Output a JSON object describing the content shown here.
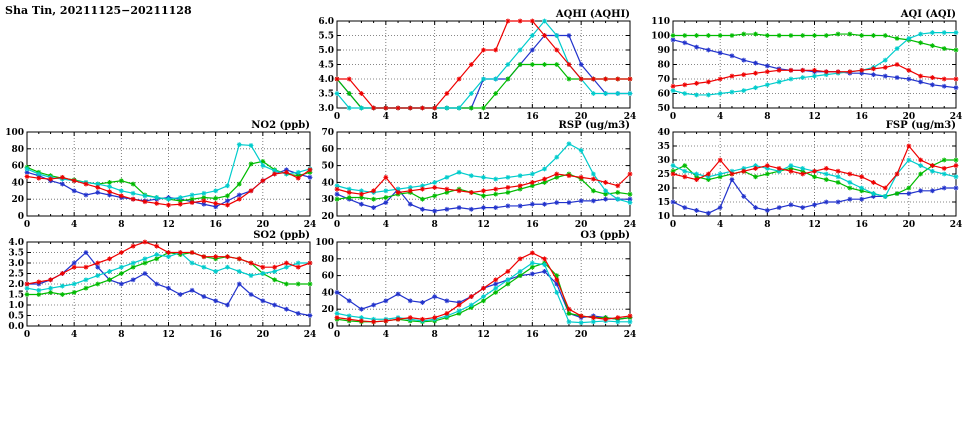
{
  "page": {
    "title": "Sha Tin, 20211125−20211128"
  },
  "chart_data": [
    {
      "id": "aqhi",
      "type": "line",
      "title": "AQHI (AQHI)",
      "xlabel": "",
      "ylabel": "",
      "xlim": [
        0,
        24
      ],
      "xticks": [
        0,
        4,
        8,
        12,
        16,
        20,
        24
      ],
      "x_step": 1,
      "ylim": [
        3.0,
        6.0
      ],
      "yticks": [
        3.0,
        3.5,
        4.0,
        4.5,
        5.0,
        5.5,
        6.0
      ],
      "ydecimals": 1,
      "grid": true,
      "legend": "none",
      "series": [
        {
          "name": "blue",
          "color": "#2233cc",
          "values": [
            4,
            3.5,
            3,
            3,
            3,
            3,
            3,
            3,
            3,
            3,
            3,
            3,
            4,
            4,
            4,
            4.5,
            5,
            5.5,
            5.5,
            5.5,
            4.5,
            4,
            3.5,
            3.5,
            3.5
          ]
        },
        {
          "name": "green",
          "color": "#00bb00",
          "values": [
            4,
            3.5,
            3,
            3,
            3,
            3,
            3,
            3,
            3,
            3,
            3,
            3,
            3,
            3.5,
            4,
            4.5,
            4.5,
            4.5,
            4.5,
            4,
            4,
            4,
            4,
            4,
            4
          ]
        },
        {
          "name": "cyan",
          "color": "#00cccc",
          "values": [
            3.5,
            3,
            3,
            3,
            3,
            3,
            3,
            3,
            3,
            3,
            3,
            3.5,
            4,
            4,
            4.5,
            5,
            5.5,
            6,
            5.5,
            4.5,
            4,
            3.5,
            3.5,
            3.5,
            3.5
          ]
        },
        {
          "name": "red",
          "color": "#ee0000",
          "values": [
            4,
            4,
            3.5,
            3,
            3,
            3,
            3,
            3,
            3,
            3.5,
            4,
            4.5,
            5,
            5,
            6,
            6,
            6,
            5.5,
            5,
            4.5,
            4,
            4,
            4,
            4,
            4
          ]
        }
      ]
    },
    {
      "id": "aqi",
      "type": "line",
      "title": "AQI (AQI)",
      "xlabel": "",
      "ylabel": "",
      "xlim": [
        0,
        24
      ],
      "xticks": [
        0,
        4,
        8,
        12,
        16,
        20,
        24
      ],
      "x_step": 1,
      "ylim": [
        50,
        110
      ],
      "yticks": [
        50,
        60,
        70,
        80,
        90,
        100,
        110
      ],
      "ydecimals": 0,
      "grid": true,
      "legend": "none",
      "series": [
        {
          "name": "blue",
          "color": "#2233cc",
          "values": [
            97,
            95,
            92,
            90,
            88,
            86,
            83,
            81,
            79,
            77,
            76,
            76,
            75,
            75,
            75,
            74,
            74,
            73,
            72,
            71,
            70,
            68,
            66,
            65,
            64
          ]
        },
        {
          "name": "green",
          "color": "#00bb00",
          "values": [
            100,
            100,
            100,
            100,
            100,
            100,
            101,
            101,
            100,
            100,
            100,
            100,
            100,
            100,
            101,
            101,
            100,
            100,
            100,
            98,
            97,
            95,
            93,
            91,
            90
          ]
        },
        {
          "name": "cyan",
          "color": "#00cccc",
          "values": [
            62,
            60,
            59,
            59,
            60,
            61,
            62,
            64,
            66,
            68,
            70,
            71,
            72,
            73,
            74,
            75,
            76,
            78,
            83,
            91,
            98,
            101,
            102,
            102,
            102
          ]
        },
        {
          "name": "red",
          "color": "#ee0000",
          "values": [
            65,
            66,
            67,
            68,
            70,
            72,
            73,
            74,
            75,
            76,
            76,
            76,
            76,
            75,
            75,
            75,
            76,
            77,
            78,
            80,
            76,
            72,
            71,
            70,
            70
          ]
        }
      ]
    },
    {
      "id": "no2",
      "type": "line",
      "title": "NO2 (ppb)",
      "xlabel": "",
      "ylabel": "",
      "xlim": [
        0,
        24
      ],
      "xticks": [
        0,
        4,
        8,
        12,
        16,
        20,
        24
      ],
      "x_step": 1,
      "ylim": [
        0,
        100
      ],
      "yticks": [
        0,
        20,
        40,
        60,
        80,
        100
      ],
      "ydecimals": 0,
      "grid": true,
      "legend": "none",
      "series": [
        {
          "name": "blue",
          "color": "#2233cc",
          "values": [
            52,
            48,
            42,
            38,
            30,
            25,
            28,
            25,
            22,
            20,
            18,
            20,
            22,
            20,
            17,
            14,
            11,
            18,
            25,
            30,
            42,
            50,
            55,
            50,
            46
          ]
        },
        {
          "name": "green",
          "color": "#00bb00",
          "values": [
            58,
            52,
            48,
            45,
            43,
            40,
            38,
            40,
            42,
            38,
            25,
            22,
            20,
            18,
            20,
            22,
            21,
            24,
            38,
            62,
            65,
            55,
            50,
            48,
            52
          ]
        },
        {
          "name": "cyan",
          "color": "#00cccc",
          "values": [
            56,
            50,
            46,
            44,
            42,
            40,
            38,
            35,
            30,
            27,
            24,
            22,
            20,
            22,
            25,
            27,
            30,
            36,
            85,
            84,
            60,
            54,
            50,
            52,
            56
          ]
        },
        {
          "name": "red",
          "color": "#ee0000",
          "values": [
            47,
            45,
            44,
            46,
            42,
            38,
            34,
            29,
            24,
            20,
            17,
            15,
            13,
            14,
            16,
            18,
            15,
            13,
            20,
            30,
            42,
            50,
            52,
            45,
            55
          ]
        }
      ]
    },
    {
      "id": "rsp",
      "type": "line",
      "title": "RSP (ug/m3)",
      "xlabel": "",
      "ylabel": "",
      "xlim": [
        0,
        24
      ],
      "xticks": [
        0,
        4,
        8,
        12,
        16,
        20,
        24
      ],
      "x_step": 1,
      "ylim": [
        20,
        70
      ],
      "yticks": [
        20,
        30,
        40,
        50,
        60,
        70
      ],
      "ydecimals": 0,
      "grid": true,
      "legend": "none",
      "series": [
        {
          "name": "blue",
          "color": "#2233cc",
          "values": [
            33,
            30,
            27,
            25,
            28,
            36,
            27,
            24,
            23,
            24,
            25,
            24,
            25,
            25,
            26,
            26,
            27,
            27,
            28,
            28,
            29,
            29,
            30,
            30,
            30
          ]
        },
        {
          "name": "green",
          "color": "#00bb00",
          "values": [
            30,
            31,
            31,
            30,
            31,
            33,
            34,
            30,
            32,
            34,
            36,
            34,
            32,
            33,
            34,
            36,
            38,
            40,
            43,
            45,
            42,
            35,
            33,
            34,
            33
          ]
        },
        {
          "name": "cyan",
          "color": "#00cccc",
          "values": [
            38,
            36,
            35,
            34,
            35,
            36,
            37,
            38,
            40,
            43,
            46,
            44,
            43,
            42,
            43,
            44,
            45,
            48,
            55,
            63,
            59,
            45,
            35,
            30,
            28
          ]
        },
        {
          "name": "red",
          "color": "#ee0000",
          "values": [
            36,
            34,
            33,
            35,
            43,
            34,
            35,
            36,
            37,
            36,
            35,
            34,
            35,
            36,
            37,
            38,
            40,
            42,
            45,
            44,
            43,
            42,
            40,
            38,
            45
          ]
        }
      ]
    },
    {
      "id": "fsp",
      "type": "line",
      "title": "FSP (ug/m3)",
      "xlabel": "",
      "ylabel": "",
      "xlim": [
        0,
        24
      ],
      "xticks": [
        0,
        4,
        8,
        12,
        16,
        20,
        24
      ],
      "x_step": 1,
      "ylim": [
        10,
        40
      ],
      "yticks": [
        10,
        15,
        20,
        25,
        30,
        35,
        40
      ],
      "ydecimals": 0,
      "grid": true,
      "legend": "none",
      "series": [
        {
          "name": "blue",
          "color": "#2233cc",
          "values": [
            15,
            13,
            12,
            11,
            13,
            23,
            17,
            13,
            12,
            13,
            14,
            13,
            14,
            15,
            15,
            16,
            16,
            17,
            17,
            18,
            18,
            19,
            19,
            20,
            20
          ]
        },
        {
          "name": "green",
          "color": "#00bb00",
          "values": [
            26,
            28,
            24,
            23,
            24,
            25,
            26,
            24,
            25,
            26,
            27,
            26,
            24,
            23,
            22,
            20,
            19,
            18,
            17,
            18,
            20,
            25,
            28,
            30,
            30
          ]
        },
        {
          "name": "cyan",
          "color": "#00cccc",
          "values": [
            28,
            26,
            25,
            24,
            25,
            26,
            27,
            28,
            27,
            26,
            28,
            27,
            26,
            25,
            24,
            22,
            20,
            18,
            17,
            25,
            30,
            28,
            26,
            25,
            24
          ]
        },
        {
          "name": "red",
          "color": "#ee0000",
          "values": [
            25,
            24,
            23,
            25,
            30,
            25,
            26,
            27,
            28,
            27,
            26,
            25,
            26,
            27,
            26,
            25,
            24,
            22,
            20,
            25,
            35,
            30,
            28,
            27,
            28
          ]
        }
      ]
    },
    {
      "id": "so2",
      "type": "line",
      "title": "SO2 (ppb)",
      "xlabel": "",
      "ylabel": "",
      "xlim": [
        0,
        24
      ],
      "xticks": [
        0,
        4,
        8,
        12,
        16,
        20,
        24
      ],
      "x_step": 1,
      "ylim": [
        0,
        4.0
      ],
      "yticks": [
        0.0,
        0.5,
        1.0,
        1.5,
        2.0,
        2.5,
        3.0,
        3.5,
        4.0
      ],
      "ydecimals": 1,
      "grid": true,
      "legend": "none",
      "series": [
        {
          "name": "blue",
          "color": "#2233cc",
          "values": [
            2,
            2,
            2.2,
            2.5,
            3,
            3.5,
            2.8,
            2.2,
            2,
            2.2,
            2.5,
            2,
            1.8,
            1.5,
            1.7,
            1.4,
            1.2,
            1,
            2,
            1.5,
            1.2,
            1,
            0.8,
            0.6,
            0.5
          ]
        },
        {
          "name": "green",
          "color": "#00bb00",
          "values": [
            1.5,
            1.5,
            1.6,
            1.5,
            1.6,
            1.8,
            2,
            2.2,
            2.5,
            2.8,
            3,
            3.2,
            3.5,
            3.4,
            3.5,
            3.3,
            3.2,
            3.3,
            3.2,
            3,
            2.5,
            2.2,
            2,
            2,
            2
          ]
        },
        {
          "name": "cyan",
          "color": "#00cccc",
          "values": [
            1.8,
            1.7,
            1.8,
            1.9,
            2,
            2.2,
            2.4,
            2.6,
            2.8,
            3,
            3.2,
            3.4,
            3.3,
            3.5,
            3,
            2.8,
            2.6,
            2.8,
            2.6,
            2.4,
            2.5,
            2.6,
            2.8,
            3,
            3
          ]
        },
        {
          "name": "red",
          "color": "#ee0000",
          "values": [
            2,
            2.1,
            2.2,
            2.5,
            2.8,
            2.8,
            3,
            3.2,
            3.5,
            3.8,
            4,
            3.8,
            3.5,
            3.5,
            3.5,
            3.3,
            3.3,
            3.3,
            3.2,
            3,
            2.8,
            2.8,
            3,
            2.8,
            3
          ]
        }
      ]
    },
    {
      "id": "o3",
      "type": "line",
      "title": "O3 (ppb)",
      "xlabel": "",
      "ylabel": "",
      "xlim": [
        0,
        24
      ],
      "xticks": [
        0,
        4,
        8,
        12,
        16,
        20,
        24
      ],
      "x_step": 1,
      "ylim": [
        0,
        100
      ],
      "yticks": [
        0,
        20,
        40,
        60,
        80,
        100
      ],
      "ydecimals": 0,
      "grid": true,
      "legend": "none",
      "series": [
        {
          "name": "blue",
          "color": "#2233cc",
          "values": [
            40,
            30,
            20,
            25,
            30,
            38,
            30,
            28,
            35,
            30,
            28,
            35,
            45,
            50,
            55,
            60,
            62,
            65,
            50,
            15,
            10,
            12,
            10,
            8,
            10
          ]
        },
        {
          "name": "green",
          "color": "#00bb00",
          "values": [
            8,
            6,
            5,
            5,
            6,
            8,
            6,
            5,
            6,
            10,
            15,
            22,
            30,
            40,
            50,
            60,
            70,
            75,
            60,
            15,
            12,
            10,
            10,
            8,
            10
          ]
        },
        {
          "name": "cyan",
          "color": "#00cccc",
          "values": [
            15,
            12,
            10,
            8,
            8,
            10,
            8,
            6,
            8,
            12,
            18,
            25,
            35,
            45,
            55,
            65,
            75,
            73,
            40,
            5,
            4,
            5,
            6,
            5,
            5
          ]
        },
        {
          "name": "red",
          "color": "#ee0000",
          "values": [
            10,
            8,
            6,
            5,
            6,
            8,
            10,
            8,
            10,
            15,
            25,
            35,
            45,
            55,
            65,
            80,
            87,
            80,
            55,
            20,
            12,
            10,
            8,
            10,
            12
          ]
        }
      ]
    }
  ]
}
